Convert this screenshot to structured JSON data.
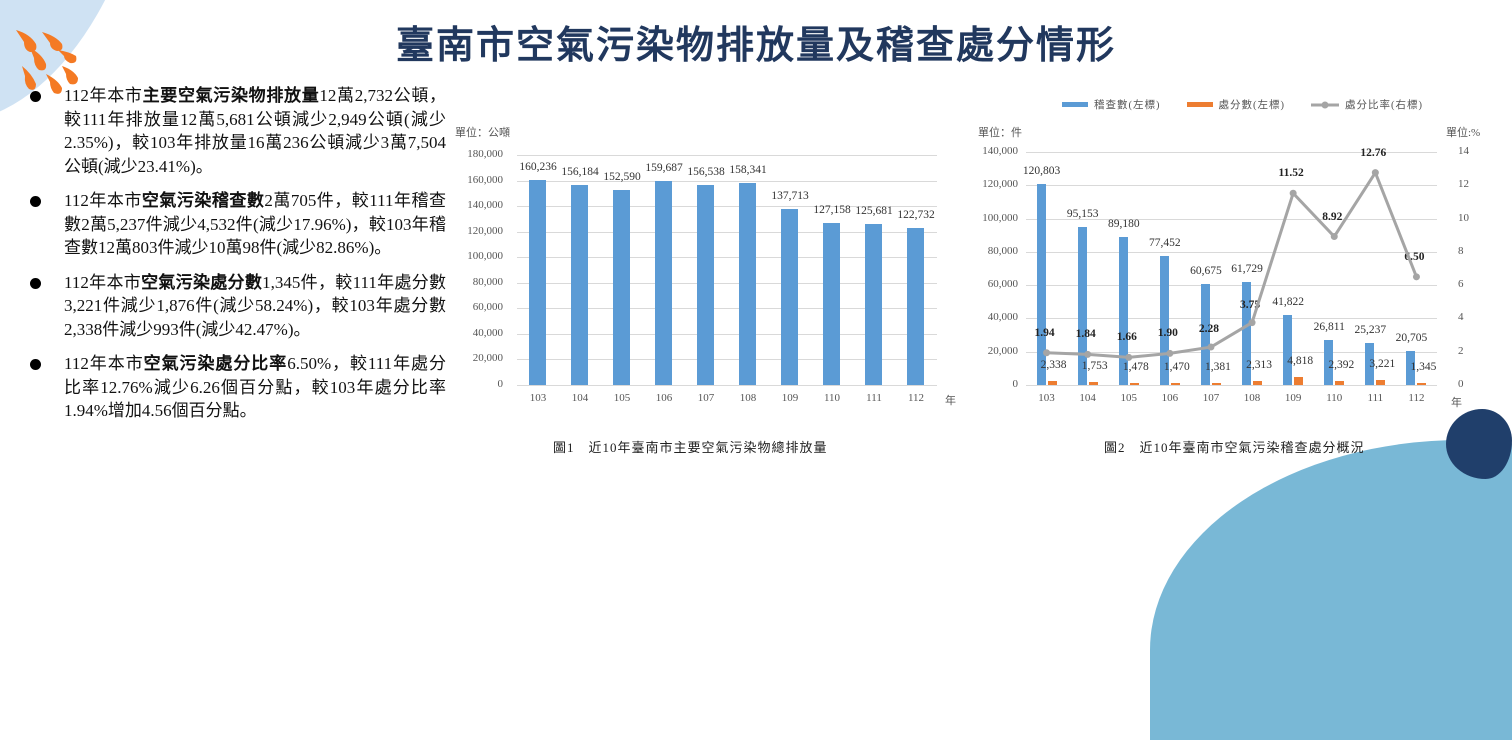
{
  "title": "臺南市空氣污染物排放量及稽查處分情形",
  "bullets": [
    {
      "prefix": "112年本市",
      "bold": "主要空氣污染物排放量",
      "text": "12萬2,732公頓，較111年排放量12萬5,681公頓減少2,949公頓(減少2.35%)，較103年排放量16萬236公頓減少3萬7,504公頓(減少23.41%)。"
    },
    {
      "prefix": "112年本市",
      "bold": "空氣污染稽查數",
      "text": "2萬705件，較111年稽查數2萬5,237件減少4,532件(減少17.96%)，較103年稽查數12萬803件減少10萬98件(減少82.86%)。"
    },
    {
      "prefix": "112年本市",
      "bold": "空氣污染處分數",
      "text": "1,345件，較111年處分數3,221件減少1,876件(減少58.24%)，較103年處分數2,338件減少993件(減少42.47%)。"
    },
    {
      "prefix": "112年本市",
      "bold": "空氣污染處分比率",
      "text": "6.50%，較111年處分比率12.76%減少6.26個百分點，較103年處分比率1.94%增加4.56個百分點。"
    }
  ],
  "chart1": {
    "unit": "單位：公噸",
    "x_unit": "年",
    "caption": "圖1　近10年臺南市主要空氣污染物總排放量",
    "yticks": [
      "180,000",
      "160,000",
      "140,000",
      "120,000",
      "100,000",
      "80,000",
      "60,000",
      "40,000",
      "20,000",
      "0"
    ],
    "labels": [
      "160,236",
      "156,184",
      "152,590",
      "159,687",
      "156,538",
      "158,341",
      "137,713",
      "127,158",
      "125,681",
      "122,732"
    ]
  },
  "chart2": {
    "unit_left": "單位：件",
    "unit_right": "單位:%",
    "x_unit": "年",
    "caption": "圖2　近10年臺南市空氣污染稽查處分概況",
    "legend": [
      "稽查數(左標)",
      "處分數(左標)",
      "處分比率(右標)"
    ],
    "yticks_left": [
      "140,000",
      "120,000",
      "100,000",
      "80,000",
      "60,000",
      "40,000",
      "20,000",
      "0"
    ],
    "yticks_right": [
      "14",
      "12",
      "10",
      "8",
      "6",
      "4",
      "2",
      "0"
    ],
    "inspection_labels": [
      "120,803",
      "95,153",
      "89,180",
      "77,452",
      "60,675",
      "61,729",
      "41,822",
      "26,811",
      "25,237",
      "20,705"
    ],
    "penalty_labels": [
      "2,338",
      "1,753",
      "1,478",
      "1,470",
      "1,381",
      "2,313",
      "4,818",
      "2,392",
      "3,221",
      "1,345"
    ],
    "rate_labels": [
      "1.94",
      "1.84",
      "1.66",
      "1.90",
      "2.28",
      "3.75",
      "11.52",
      "8.92",
      "12.76",
      "6.50"
    ]
  },
  "colors": {
    "title": "#21385e",
    "bar_blue": "#5b9bd5",
    "bar_orange": "#ed7d31",
    "line_gray": "#a5a5a5",
    "drops": "#f47a24"
  },
  "chart_data": [
    {
      "type": "bar",
      "title": "圖1 近10年臺南市主要空氣污染物總排放量",
      "xlabel": "年",
      "ylabel": "單位：公噸",
      "categories": [
        "103",
        "104",
        "105",
        "106",
        "107",
        "108",
        "109",
        "110",
        "111",
        "112"
      ],
      "values": [
        160236,
        156184,
        152590,
        159687,
        156538,
        158341,
        137713,
        127158,
        125681,
        122732
      ],
      "ylim": [
        0,
        180000
      ],
      "grid": true,
      "legend": "none"
    },
    {
      "type": "bar",
      "title": "圖2 近10年臺南市空氣污染稽查處分概況",
      "xlabel": "年",
      "ylabel": "單位：件",
      "y2label": "單位:%",
      "categories": [
        "103",
        "104",
        "105",
        "106",
        "107",
        "108",
        "109",
        "110",
        "111",
        "112"
      ],
      "series": [
        {
          "name": "稽查數(左標)",
          "type": "bar",
          "axis": "left",
          "values": [
            120803,
            95153,
            89180,
            77452,
            60675,
            61729,
            41822,
            26811,
            25237,
            20705
          ]
        },
        {
          "name": "處分數(左標)",
          "type": "bar",
          "axis": "left",
          "values": [
            2338,
            1753,
            1478,
            1470,
            1381,
            2313,
            4818,
            2392,
            3221,
            1345
          ]
        },
        {
          "name": "處分比率(右標)",
          "type": "line",
          "axis": "right",
          "values": [
            1.94,
            1.84,
            1.66,
            1.9,
            2.28,
            3.75,
            11.52,
            8.92,
            12.76,
            6.5
          ]
        }
      ],
      "ylim": [
        0,
        140000
      ],
      "y2lim": [
        0,
        14
      ],
      "grid": true,
      "legend": "top"
    }
  ]
}
